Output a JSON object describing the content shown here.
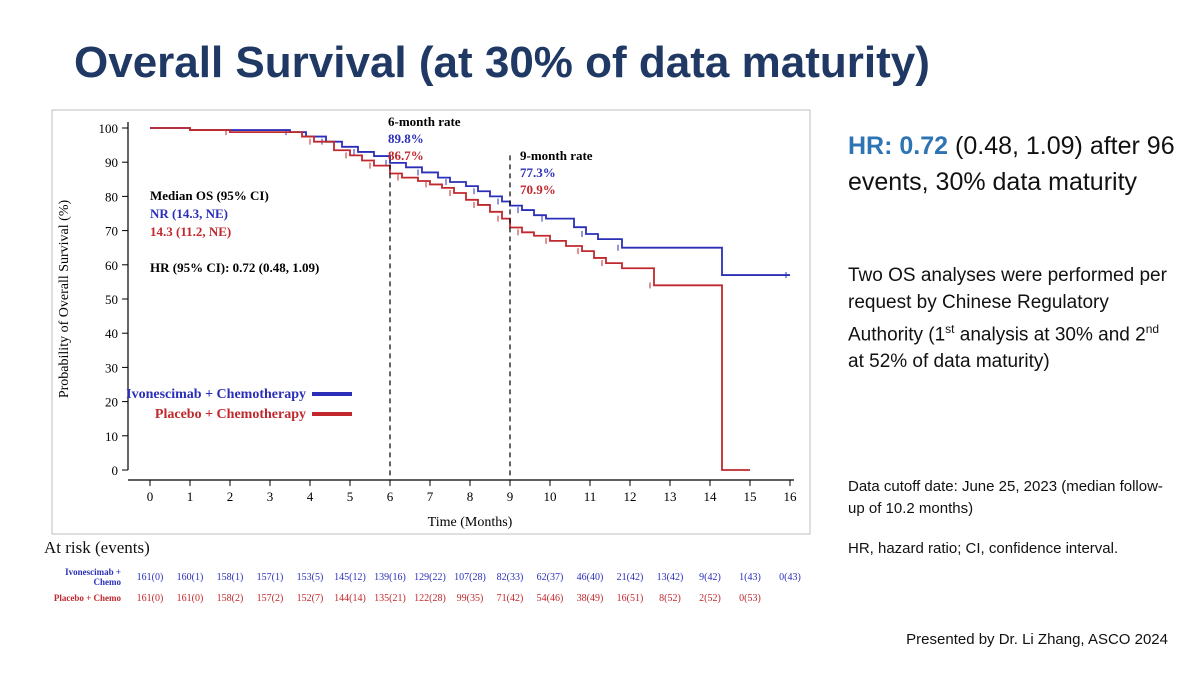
{
  "slide": {
    "title": "Overall Survival (at 30% of data maturity)",
    "presenter": "Presented by Dr. Li Zhang, ASCO 2024"
  },
  "summary": {
    "hr_label": "HR:",
    "hr_value": "0.72",
    "hr_ci": "(0.48, 1.09)",
    "hr_rest": "after 96 events, 30% data maturity",
    "analyses_part1": "Two OS analyses were performed per request by Chinese Regulatory Authority (1",
    "sup1": "st",
    "analyses_part2": " analysis at 30% and 2",
    "sup2": "nd",
    "analyses_part3": " at 52% of data maturity)",
    "cutoff": "Data cutoff date: June 25, 2023 (median follow-up of 10.2 months)",
    "abbrev": "HR, hazard ratio; CI, confidence interval."
  },
  "at_risk": {
    "title": "At risk (events)",
    "rows": [
      {
        "label_line1": "Ivonescimab +",
        "label_line2": "Chemo",
        "color": "#2b2fb8",
        "values": [
          "161(0)",
          "160(1)",
          "158(1)",
          "157(1)",
          "153(5)",
          "145(12)",
          "139(16)",
          "129(22)",
          "107(28)",
          "82(33)",
          "62(37)",
          "46(40)",
          "21(42)",
          "13(42)",
          "9(42)",
          "1(43)",
          "0(43)"
        ]
      },
      {
        "label_line1": "Placebo + Chemo",
        "label_line2": "",
        "color": "#c0282d",
        "values": [
          "161(0)",
          "161(0)",
          "158(2)",
          "157(2)",
          "152(7)",
          "144(14)",
          "135(21)",
          "122(28)",
          "99(35)",
          "71(42)",
          "54(46)",
          "38(49)",
          "16(51)",
          "8(52)",
          "2(52)",
          "0(53)",
          ""
        ]
      }
    ]
  },
  "chart_data": {
    "type": "line",
    "subtype": "kaplan-meier-step",
    "xlabel": "Time (Months)",
    "ylabel": "Probability of Overall Survival (%)",
    "xlim": [
      0,
      16
    ],
    "ylim": [
      0,
      100
    ],
    "xticks": [
      0,
      1,
      2,
      3,
      4,
      5,
      6,
      7,
      8,
      9,
      10,
      11,
      12,
      13,
      14,
      15,
      16
    ],
    "yticks": [
      0,
      10,
      20,
      30,
      40,
      50,
      60,
      70,
      80,
      90,
      100
    ],
    "series": [
      {
        "name": "Ivonescimab + Chemotherapy",
        "color": "#2b2fb8",
        "points": [
          [
            0,
            100
          ],
          [
            1,
            99.4
          ],
          [
            3.5,
            98.8
          ],
          [
            3.9,
            97.5
          ],
          [
            4.4,
            96.0
          ],
          [
            4.8,
            94.5
          ],
          [
            5.2,
            93.0
          ],
          [
            5.6,
            91.8
          ],
          [
            6,
            89.8
          ],
          [
            6.4,
            88.5
          ],
          [
            6.8,
            87.0
          ],
          [
            7.2,
            85.5
          ],
          [
            7.5,
            84.2
          ],
          [
            7.9,
            83.0
          ],
          [
            8.2,
            81.5
          ],
          [
            8.5,
            80.0
          ],
          [
            8.8,
            78.5
          ],
          [
            9,
            77.3
          ],
          [
            9.3,
            76.0
          ],
          [
            9.6,
            74.5
          ],
          [
            9.9,
            73.5
          ],
          [
            10.6,
            71.0
          ],
          [
            10.9,
            69.0
          ],
          [
            11.2,
            67.5
          ],
          [
            11.8,
            65.0
          ],
          [
            14.3,
            57.0
          ],
          [
            16,
            57.0
          ]
        ]
      },
      {
        "name": "Placebo + Chemotherapy",
        "color": "#c0282d",
        "points": [
          [
            0,
            100
          ],
          [
            1,
            99.4
          ],
          [
            2,
            98.8
          ],
          [
            3.8,
            97.5
          ],
          [
            4.1,
            96.0
          ],
          [
            4.6,
            93.5
          ],
          [
            5.0,
            92.0
          ],
          [
            5.3,
            90.5
          ],
          [
            5.6,
            89.0
          ],
          [
            6,
            86.7
          ],
          [
            6.3,
            85.5
          ],
          [
            6.7,
            84.5
          ],
          [
            7.0,
            83.5
          ],
          [
            7.3,
            82.5
          ],
          [
            7.6,
            81.0
          ],
          [
            7.9,
            79.0
          ],
          [
            8.2,
            77.5
          ],
          [
            8.5,
            75.5
          ],
          [
            8.8,
            73.5
          ],
          [
            9,
            70.9
          ],
          [
            9.3,
            69.5
          ],
          [
            9.6,
            68.5
          ],
          [
            10.0,
            67.0
          ],
          [
            10.4,
            65.5
          ],
          [
            10.8,
            64.0
          ],
          [
            11.1,
            62.0
          ],
          [
            11.4,
            60.5
          ],
          [
            11.8,
            59.0
          ],
          [
            12.6,
            54.0
          ],
          [
            14.3,
            0
          ],
          [
            15,
            0
          ]
        ]
      }
    ],
    "legend": [
      {
        "label": "Ivonescimab + Chemotherapy",
        "color": "#2b2fb8"
      },
      {
        "label": "Placebo + Chemotherapy",
        "color": "#c0282d"
      }
    ],
    "legend_position": "lower-left",
    "median_os": {
      "title": "Median OS (95% CI)",
      "ivo": "NR (14.3, NE)",
      "pbo": "14.3 (11.2, NE)",
      "hr": "HR (95% CI): 0.72 (0.48, 1.09)"
    },
    "annotations": [
      {
        "x": 6,
        "label": "6-month rate",
        "ivo": "89.8%",
        "pbo": "86.7%"
      },
      {
        "x": 9,
        "label": "9-month rate",
        "ivo": "77.3%",
        "pbo": "70.9%"
      }
    ]
  }
}
